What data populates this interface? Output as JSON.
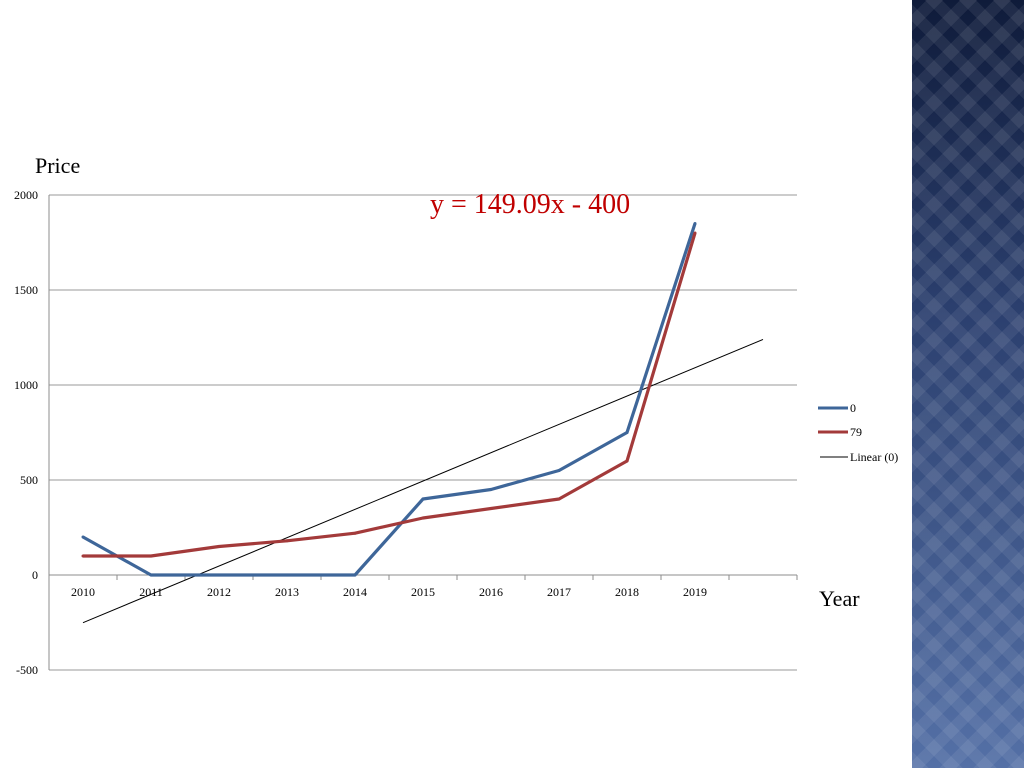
{
  "chart_data": {
    "type": "line",
    "ylabel": "Price",
    "xlabel": "Year",
    "categories": [
      "2010",
      "2011",
      "2012",
      "2013",
      "2014",
      "2015",
      "2016",
      "2017",
      "2018",
      "2019"
    ],
    "ylim": [
      -500,
      2000
    ],
    "yticks": [
      2000,
      1500,
      1000,
      500,
      0,
      -500
    ],
    "grid": true,
    "legend_position": "right",
    "series": [
      {
        "name": "0",
        "color": "#3e6699",
        "values": [
          200,
          0,
          0,
          0,
          0,
          400,
          450,
          550,
          750,
          1850
        ]
      },
      {
        "name": "79",
        "color": "#a33a3a",
        "values": [
          100,
          100,
          150,
          180,
          220,
          300,
          350,
          400,
          600,
          1800
        ]
      }
    ],
    "trendline": {
      "name": "Linear (0)",
      "color": "#000000",
      "slope": 149.09,
      "intercept": -400,
      "x_start": 1,
      "x_end": 11
    },
    "annotation": {
      "text": "y = 149.09x - 400",
      "color": "#c00000"
    }
  }
}
